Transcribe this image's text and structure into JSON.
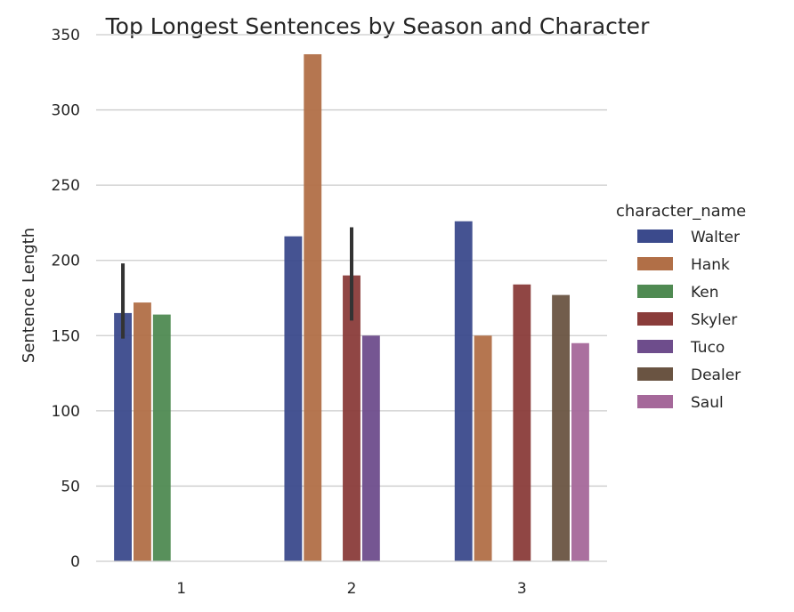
{
  "chart_data": {
    "type": "bar",
    "title": "Top Longest Sentences by Season and Character",
    "xlabel": "",
    "ylabel": "Sentence Length",
    "categories": [
      "1",
      "2",
      "3"
    ],
    "ylim": [
      0,
      350
    ],
    "yticks": [
      0,
      50,
      100,
      150,
      200,
      250,
      300,
      350
    ],
    "grid": true,
    "legend_title": "character_name",
    "legend_position": "right",
    "series": [
      {
        "name": "Walter",
        "color": "#3b4a8c",
        "values": [
          165,
          216,
          226
        ],
        "errors": [
          [
            148,
            198
          ],
          null,
          null
        ]
      },
      {
        "name": "Hank",
        "color": "#b16f47",
        "values": [
          172,
          337,
          150
        ],
        "errors": [
          null,
          null,
          null
        ]
      },
      {
        "name": "Ken",
        "color": "#4f8a52",
        "values": [
          164,
          null,
          null
        ],
        "errors": [
          null,
          null,
          null
        ]
      },
      {
        "name": "Skyler",
        "color": "#8a3c3a",
        "values": [
          null,
          190,
          184
        ],
        "errors": [
          null,
          [
            160,
            222
          ],
          null
        ]
      },
      {
        "name": "Tuco",
        "color": "#6e4d8c",
        "values": [
          null,
          150,
          null
        ],
        "errors": [
          null,
          null,
          null
        ]
      },
      {
        "name": "Dealer",
        "color": "#6a5442",
        "values": [
          null,
          null,
          177
        ],
        "errors": [
          null,
          null,
          null
        ]
      },
      {
        "name": "Saul",
        "color": "#a5689a",
        "values": [
          null,
          null,
          145
        ],
        "errors": [
          null,
          null,
          null
        ]
      }
    ]
  }
}
